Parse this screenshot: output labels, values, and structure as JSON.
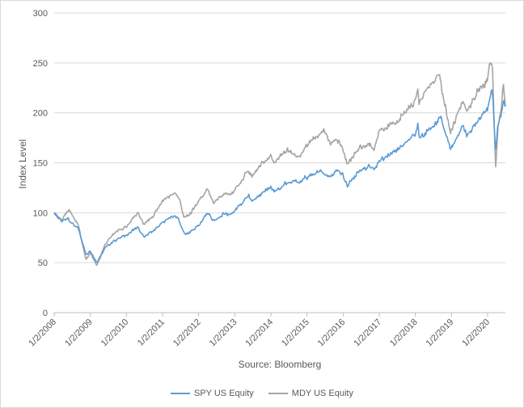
{
  "chart_data": {
    "type": "line",
    "xlabel": "Source: Bloomberg",
    "ylabel": "Index Level",
    "ylim": [
      0,
      300
    ],
    "y_ticks": [
      "0",
      "50",
      "100",
      "150",
      "200",
      "250",
      "300"
    ],
    "x_tick_labels": [
      "1/2/2008",
      "1/2/2009",
      "1/2/2010",
      "1/2/2011",
      "1/2/2012",
      "1/2/2013",
      "1/2/2014",
      "1/2/2015",
      "1/2/2016",
      "1/2/2017",
      "1/2/2018",
      "1/2/2019",
      "1/2/2020"
    ],
    "x_range": [
      "2008-01-02",
      "2020-06-30"
    ],
    "grid": "horizontal",
    "legend_position": "bottom",
    "colors": {
      "SPY US Equity": "#5b9bd5",
      "MDY US Equity": "#a5a5a5"
    },
    "series": [
      {
        "name": "SPY US Equity",
        "x": [
          "2008-01-02",
          "2008-03-15",
          "2008-05-15",
          "2008-07-15",
          "2008-09-01",
          "2008-10-15",
          "2008-11-20",
          "2009-01-02",
          "2009-03-09",
          "2009-06-01",
          "2009-09-01",
          "2010-01-02",
          "2010-04-23",
          "2010-07-01",
          "2010-10-01",
          "2011-01-02",
          "2011-04-29",
          "2011-06-15",
          "2011-08-08",
          "2011-10-03",
          "2012-01-02",
          "2012-04-01",
          "2012-06-01",
          "2012-09-15",
          "2012-11-15",
          "2013-01-02",
          "2013-05-21",
          "2013-06-24",
          "2013-09-15",
          "2014-01-02",
          "2014-02-03",
          "2014-06-15",
          "2014-10-15",
          "2015-01-02",
          "2015-05-21",
          "2015-08-25",
          "2015-11-01",
          "2016-01-02",
          "2016-02-11",
          "2016-06-15",
          "2016-09-15",
          "2016-11-08",
          "2017-01-02",
          "2017-06-15",
          "2018-01-02",
          "2018-01-26",
          "2018-02-08",
          "2018-06-15",
          "2018-09-20",
          "2018-12-24",
          "2019-01-02",
          "2019-04-30",
          "2019-06-03",
          "2019-09-15",
          "2020-01-02",
          "2020-02-19",
          "2020-03-23",
          "2020-04-15",
          "2020-05-15",
          "2020-06-08",
          "2020-06-30"
        ],
        "values": [
          100,
          92,
          95,
          88,
          85,
          70,
          58,
          62,
          50,
          65,
          72,
          78,
          85,
          76,
          82,
          90,
          97,
          93,
          79,
          80,
          87,
          100,
          92,
          99,
          98,
          102,
          117,
          111,
          118,
          126,
          121,
          130,
          131,
          136,
          142,
          136,
          142,
          137,
          127,
          142,
          146,
          143,
          151,
          161,
          179,
          190,
          175,
          184,
          196,
          162,
          165,
          188,
          177,
          190,
          204,
          225,
          160,
          185,
          198,
          212,
          208
        ]
      },
      {
        "name": "MDY US Equity",
        "x": [
          "2008-01-02",
          "2008-03-15",
          "2008-06-01",
          "2008-07-15",
          "2008-09-01",
          "2008-10-15",
          "2008-11-20",
          "2009-01-02",
          "2009-03-09",
          "2009-06-01",
          "2009-09-01",
          "2010-01-02",
          "2010-04-23",
          "2010-07-01",
          "2010-10-01",
          "2011-01-02",
          "2011-04-29",
          "2011-06-15",
          "2011-08-08",
          "2011-10-03",
          "2012-01-02",
          "2012-04-01",
          "2012-06-01",
          "2012-09-15",
          "2012-11-15",
          "2013-01-02",
          "2013-05-21",
          "2013-06-24",
          "2013-09-15",
          "2014-01-02",
          "2014-02-03",
          "2014-06-15",
          "2014-10-15",
          "2015-01-02",
          "2015-06-23",
          "2015-08-25",
          "2015-11-01",
          "2016-01-02",
          "2016-02-11",
          "2016-06-15",
          "2016-09-15",
          "2016-11-08",
          "2017-01-02",
          "2017-06-15",
          "2018-01-02",
          "2018-01-26",
          "2018-02-08",
          "2018-06-15",
          "2018-09-01",
          "2018-12-24",
          "2019-01-02",
          "2019-04-30",
          "2019-06-03",
          "2019-09-15",
          "2020-01-02",
          "2020-01-17",
          "2020-02-20",
          "2020-03-23",
          "2020-04-15",
          "2020-05-15",
          "2020-06-08",
          "2020-06-30"
        ],
        "values": [
          100,
          92,
          104,
          95,
          88,
          68,
          53,
          60,
          47,
          68,
          80,
          86,
          100,
          88,
          97,
          112,
          120,
          115,
          95,
          98,
          112,
          123,
          110,
          119,
          118,
          122,
          143,
          136,
          148,
          157,
          150,
          163,
          155,
          168,
          182,
          169,
          173,
          164,
          148,
          165,
          168,
          163,
          182,
          190,
          212,
          225,
          210,
          230,
          238,
          178,
          183,
          212,
          200,
          220,
          232,
          248,
          245,
          143,
          185,
          200,
          230,
          205
        ]
      }
    ]
  },
  "legend": {
    "spy_label": "SPY US Equity",
    "mdy_label": "MDY US Equity"
  }
}
